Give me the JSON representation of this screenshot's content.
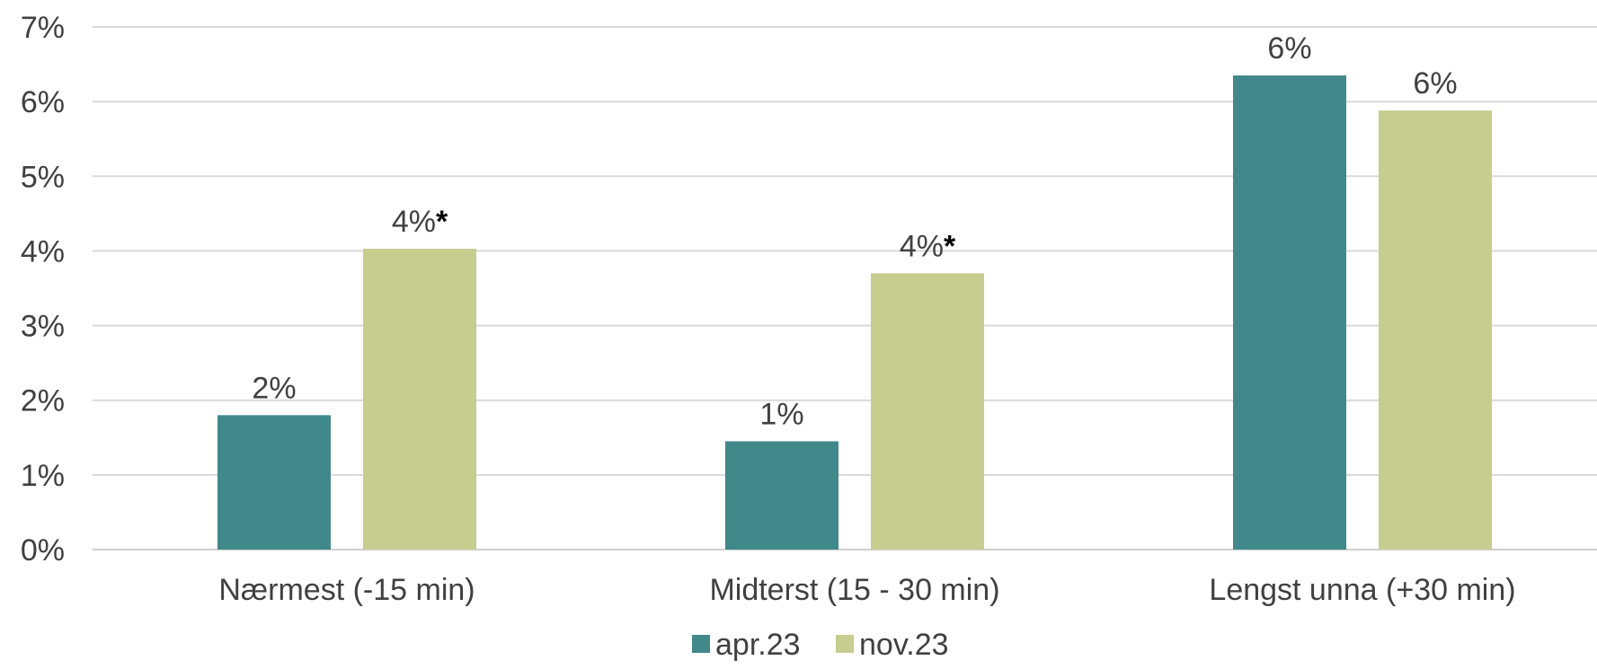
{
  "chart_data": {
    "type": "bar",
    "title": "",
    "xlabel": "",
    "ylabel": "",
    "ylim": [
      0,
      7
    ],
    "y_ticks": [
      "0%",
      "1%",
      "2%",
      "3%",
      "4%",
      "5%",
      "6%",
      "7%"
    ],
    "y_tick_values": [
      0,
      1,
      2,
      3,
      4,
      5,
      6,
      7
    ],
    "grid": true,
    "legend_position": "bottom",
    "categories": [
      "Nærmest (-15 min)",
      "Midterst (15 - 30 min)",
      "Lengst unna (+30 min)"
    ],
    "series": [
      {
        "name": "apr.23",
        "color": "#41888a",
        "values": [
          1.8,
          1.45,
          6.35
        ],
        "labels": [
          "2%",
          "1%",
          "6%"
        ],
        "marks": [
          "",
          "",
          ""
        ]
      },
      {
        "name": "nov.23",
        "color": "#c6cd8f",
        "values": [
          4.03,
          3.7,
          5.88
        ],
        "labels": [
          "4%",
          "4%",
          "6%"
        ],
        "marks": [
          "*",
          "*",
          ""
        ]
      }
    ]
  }
}
